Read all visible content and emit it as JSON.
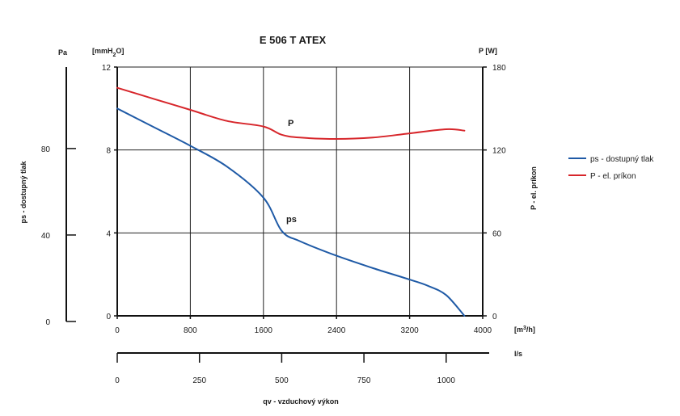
{
  "chart_data": {
    "type": "line",
    "title": "E 506 T ATEX",
    "x_axis": {
      "unit": "[m³/h]",
      "unit_base": "[m",
      "unit_sup": "3",
      "unit_tail": "/h]",
      "ticks": [
        0,
        800,
        1600,
        2400,
        3200,
        4000
      ],
      "range": [
        0,
        4000
      ]
    },
    "x_axis_secondary": {
      "unit": "l/s",
      "ticks": [
        0,
        250,
        500,
        750,
        1000
      ],
      "factor_m3h_to_ls": 0.27778
    },
    "x_label": "qv - vzduchový výkon",
    "y_left_mmh2o": {
      "unit": "[mmH₂O]",
      "unit_base": "[mmH",
      "unit_sub": "2",
      "unit_tail": "O]",
      "ticks": [
        0,
        4,
        8,
        12
      ],
      "range": [
        0,
        12
      ]
    },
    "y_left_pa": {
      "unit": "Pa",
      "ticks": [
        0,
        40,
        80
      ],
      "pa_per_mmh2o": 9.80665
    },
    "y_left_label": "ps - dostupný tlak",
    "y_right": {
      "unit": "P [W]",
      "ticks": [
        0,
        60,
        120,
        180
      ],
      "range": [
        0,
        180
      ]
    },
    "y_right_label": "P - el. príkon",
    "series": [
      {
        "name": "ps - dostupný tlak",
        "label": "ps",
        "axis": "left_mmh2o",
        "color": "#1f5aa6",
        "points": [
          [
            0,
            10.0
          ],
          [
            400,
            9.1
          ],
          [
            800,
            8.2
          ],
          [
            1200,
            7.2
          ],
          [
            1600,
            5.7
          ],
          [
            1800,
            4.1
          ],
          [
            2000,
            3.6
          ],
          [
            2400,
            2.9
          ],
          [
            2800,
            2.3
          ],
          [
            3200,
            1.75
          ],
          [
            3400,
            1.45
          ],
          [
            3600,
            1.0
          ],
          [
            3800,
            0.0
          ]
        ]
      },
      {
        "name": "P - el. príkon",
        "label": "P",
        "axis": "right",
        "color": "#d7262b",
        "points": [
          [
            0,
            165
          ],
          [
            400,
            157
          ],
          [
            800,
            149
          ],
          [
            1200,
            141
          ],
          [
            1600,
            137
          ],
          [
            1800,
            131
          ],
          [
            2000,
            129
          ],
          [
            2400,
            128
          ],
          [
            2800,
            129
          ],
          [
            3200,
            132
          ],
          [
            3600,
            135
          ],
          [
            3800,
            134
          ]
        ]
      }
    ],
    "legend": {
      "position": "right",
      "entries": [
        "ps - dostupný tlak",
        "P - el. príkon"
      ]
    },
    "grid": true
  }
}
